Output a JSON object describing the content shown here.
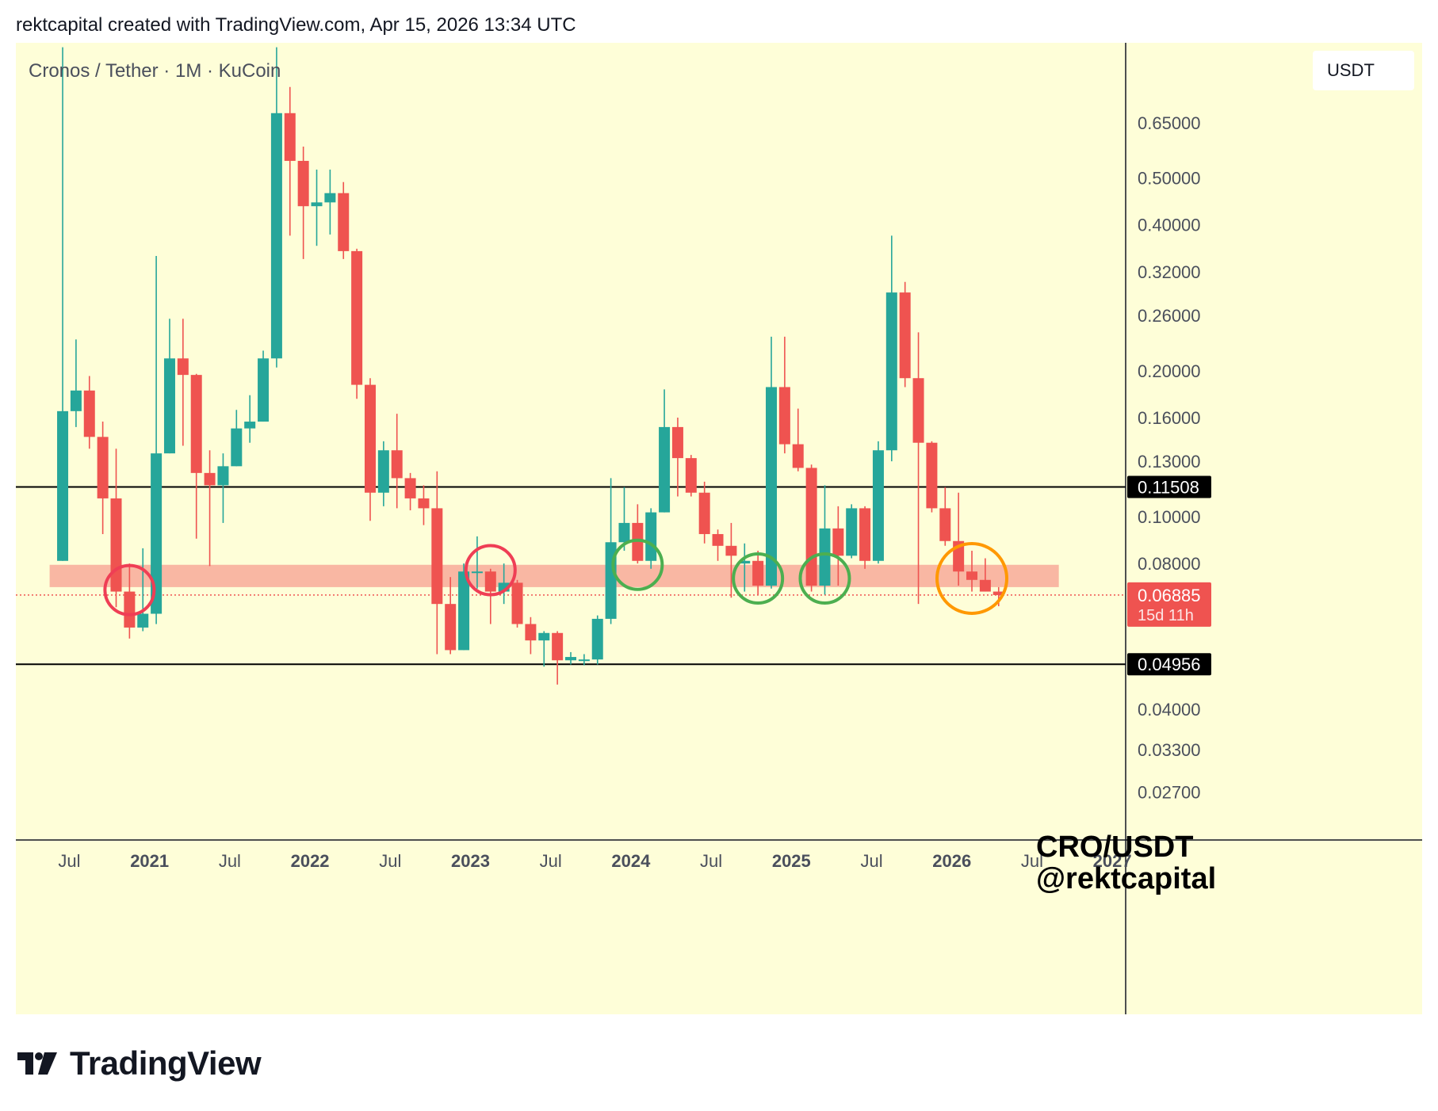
{
  "header": {
    "text": "rektcapital created with TradingView.com, Apr 15, 2026 13:34 UTC"
  },
  "symbol_label": "Cronos / Tether · 1M · KuCoin",
  "currency": "USDT",
  "watermark": {
    "line1": "CRO/USDT",
    "line2": "@rektcapital"
  },
  "footer": {
    "brand": "TradingView"
  },
  "colors": {
    "background": "#fefed8",
    "bull": "#26a69a",
    "bear": "#ef5350",
    "zone": "#f9b7a3",
    "circle_red": "#ef3e55",
    "circle_green": "#4caf50",
    "circle_orange": "#ff9800"
  },
  "chart_data": {
    "type": "candlestick",
    "y_scale": "log",
    "ylim": [
      0.0215,
      0.95
    ],
    "xlim": [
      "2020-03",
      "2027-02"
    ],
    "y_ticks": [
      "0.65000",
      "0.50000",
      "0.40000",
      "0.32000",
      "0.26000",
      "0.20000",
      "0.16000",
      "0.13000",
      "0.10000",
      "0.08000",
      "0.04000",
      "0.03300",
      "0.02700"
    ],
    "x_ticks": [
      {
        "date": "2020-07",
        "label": "Jul",
        "bold": false
      },
      {
        "date": "2021-01",
        "label": "2021",
        "bold": true
      },
      {
        "date": "2021-07",
        "label": "Jul",
        "bold": false
      },
      {
        "date": "2022-01",
        "label": "2022",
        "bold": true
      },
      {
        "date": "2022-07",
        "label": "Jul",
        "bold": false
      },
      {
        "date": "2023-01",
        "label": "2023",
        "bold": true
      },
      {
        "date": "2023-07",
        "label": "Jul",
        "bold": false
      },
      {
        "date": "2024-01",
        "label": "2024",
        "bold": true
      },
      {
        "date": "2024-07",
        "label": "Jul",
        "bold": false
      },
      {
        "date": "2025-01",
        "label": "2025",
        "bold": true
      },
      {
        "date": "2025-07",
        "label": "Jul",
        "bold": false
      },
      {
        "date": "2026-01",
        "label": "2026",
        "bold": true
      },
      {
        "date": "2026-07",
        "label": "Jul",
        "bold": false
      },
      {
        "date": "2027-01",
        "label": "2027",
        "bold": true
      }
    ],
    "horizontal_lines": [
      {
        "value": 0.11508,
        "label": "0.11508"
      },
      {
        "value": 0.04956,
        "label": "0.04956"
      }
    ],
    "current_price": {
      "value": 0.06885,
      "label": "0.06885",
      "countdown": "15d 11h"
    },
    "support_zone": {
      "low": 0.0715,
      "high": 0.0795,
      "from": "2020-06",
      "to": "2026-09"
    },
    "candles": [
      {
        "t": "2020-06",
        "o": 0.081,
        "h": 0.93,
        "l": 0.081,
        "c": 0.165
      },
      {
        "t": "2020-07",
        "o": 0.165,
        "h": 0.232,
        "l": 0.153,
        "c": 0.182
      },
      {
        "t": "2020-08",
        "o": 0.182,
        "h": 0.195,
        "l": 0.138,
        "c": 0.146
      },
      {
        "t": "2020-09",
        "o": 0.146,
        "h": 0.157,
        "l": 0.092,
        "c": 0.109
      },
      {
        "t": "2020-10",
        "o": 0.109,
        "h": 0.138,
        "l": 0.065,
        "c": 0.07
      },
      {
        "t": "2020-11",
        "o": 0.07,
        "h": 0.08,
        "l": 0.056,
        "c": 0.059
      },
      {
        "t": "2020-12",
        "o": 0.059,
        "h": 0.086,
        "l": 0.058,
        "c": 0.063
      },
      {
        "t": "2021-01",
        "o": 0.063,
        "h": 0.345,
        "l": 0.06,
        "c": 0.135
      },
      {
        "t": "2021-02",
        "o": 0.135,
        "h": 0.256,
        "l": 0.135,
        "c": 0.212
      },
      {
        "t": "2021-03",
        "o": 0.212,
        "h": 0.256,
        "l": 0.14,
        "c": 0.196
      },
      {
        "t": "2021-04",
        "o": 0.196,
        "h": 0.197,
        "l": 0.09,
        "c": 0.123
      },
      {
        "t": "2021-05",
        "o": 0.123,
        "h": 0.137,
        "l": 0.079,
        "c": 0.116
      },
      {
        "t": "2021-06",
        "o": 0.116,
        "h": 0.135,
        "l": 0.097,
        "c": 0.127
      },
      {
        "t": "2021-07",
        "o": 0.127,
        "h": 0.166,
        "l": 0.127,
        "c": 0.152
      },
      {
        "t": "2021-08",
        "o": 0.152,
        "h": 0.178,
        "l": 0.142,
        "c": 0.157
      },
      {
        "t": "2021-09",
        "o": 0.157,
        "h": 0.22,
        "l": 0.157,
        "c": 0.212
      },
      {
        "t": "2021-10",
        "o": 0.212,
        "h": 0.93,
        "l": 0.203,
        "c": 0.68
      },
      {
        "t": "2021-11",
        "o": 0.68,
        "h": 0.77,
        "l": 0.38,
        "c": 0.542
      },
      {
        "t": "2021-12",
        "o": 0.542,
        "h": 0.58,
        "l": 0.34,
        "c": 0.437
      },
      {
        "t": "2022-01",
        "o": 0.437,
        "h": 0.52,
        "l": 0.362,
        "c": 0.445
      },
      {
        "t": "2022-02",
        "o": 0.445,
        "h": 0.52,
        "l": 0.382,
        "c": 0.465
      },
      {
        "t": "2022-03",
        "o": 0.465,
        "h": 0.49,
        "l": 0.34,
        "c": 0.353
      },
      {
        "t": "2022-04",
        "o": 0.353,
        "h": 0.357,
        "l": 0.175,
        "c": 0.187
      },
      {
        "t": "2022-05",
        "o": 0.187,
        "h": 0.193,
        "l": 0.098,
        "c": 0.112
      },
      {
        "t": "2022-06",
        "o": 0.112,
        "h": 0.143,
        "l": 0.105,
        "c": 0.137
      },
      {
        "t": "2022-07",
        "o": 0.137,
        "h": 0.163,
        "l": 0.104,
        "c": 0.12
      },
      {
        "t": "2022-08",
        "o": 0.12,
        "h": 0.123,
        "l": 0.103,
        "c": 0.109
      },
      {
        "t": "2022-09",
        "o": 0.109,
        "h": 0.116,
        "l": 0.096,
        "c": 0.104
      },
      {
        "t": "2022-10",
        "o": 0.104,
        "h": 0.124,
        "l": 0.052,
        "c": 0.066
      },
      {
        "t": "2022-11",
        "o": 0.066,
        "h": 0.075,
        "l": 0.052,
        "c": 0.053
      },
      {
        "t": "2022-12",
        "o": 0.053,
        "h": 0.08,
        "l": 0.053,
        "c": 0.077
      },
      {
        "t": "2023-01",
        "o": 0.077,
        "h": 0.091,
        "l": 0.071,
        "c": 0.077
      },
      {
        "t": "2023-02",
        "o": 0.077,
        "h": 0.078,
        "l": 0.06,
        "c": 0.07
      },
      {
        "t": "2023-03",
        "o": 0.07,
        "h": 0.08,
        "l": 0.066,
        "c": 0.073
      },
      {
        "t": "2023-04",
        "o": 0.073,
        "h": 0.074,
        "l": 0.059,
        "c": 0.06
      },
      {
        "t": "2023-05",
        "o": 0.06,
        "h": 0.062,
        "l": 0.052,
        "c": 0.0555
      },
      {
        "t": "2023-06",
        "o": 0.0555,
        "h": 0.058,
        "l": 0.049,
        "c": 0.0575
      },
      {
        "t": "2023-07",
        "o": 0.0575,
        "h": 0.058,
        "l": 0.045,
        "c": 0.0505
      },
      {
        "t": "2023-08",
        "o": 0.0505,
        "h": 0.0525,
        "l": 0.0495,
        "c": 0.0513
      },
      {
        "t": "2023-09",
        "o": 0.0505,
        "h": 0.052,
        "l": 0.0493,
        "c": 0.0507
      },
      {
        "t": "2023-10",
        "o": 0.0507,
        "h": 0.0625,
        "l": 0.0495,
        "c": 0.0615
      },
      {
        "t": "2023-11",
        "o": 0.0615,
        "h": 0.12,
        "l": 0.06,
        "c": 0.0885
      },
      {
        "t": "2023-12",
        "o": 0.0885,
        "h": 0.115,
        "l": 0.085,
        "c": 0.097
      },
      {
        "t": "2024-01",
        "o": 0.097,
        "h": 0.106,
        "l": 0.08,
        "c": 0.081
      },
      {
        "t": "2024-02",
        "o": 0.081,
        "h": 0.104,
        "l": 0.078,
        "c": 0.102
      },
      {
        "t": "2024-03",
        "o": 0.102,
        "h": 0.183,
        "l": 0.102,
        "c": 0.153
      },
      {
        "t": "2024-04",
        "o": 0.153,
        "h": 0.16,
        "l": 0.11,
        "c": 0.132
      },
      {
        "t": "2024-05",
        "o": 0.132,
        "h": 0.134,
        "l": 0.11,
        "c": 0.112
      },
      {
        "t": "2024-06",
        "o": 0.112,
        "h": 0.118,
        "l": 0.088,
        "c": 0.092
      },
      {
        "t": "2024-07",
        "o": 0.092,
        "h": 0.094,
        "l": 0.081,
        "c": 0.087
      },
      {
        "t": "2024-08",
        "o": 0.087,
        "h": 0.097,
        "l": 0.068,
        "c": 0.083
      },
      {
        "t": "2024-09",
        "o": 0.08,
        "h": 0.088,
        "l": 0.07,
        "c": 0.081
      },
      {
        "t": "2024-10",
        "o": 0.081,
        "h": 0.085,
        "l": 0.069,
        "c": 0.072
      },
      {
        "t": "2024-11",
        "o": 0.072,
        "h": 0.235,
        "l": 0.071,
        "c": 0.185
      },
      {
        "t": "2024-12",
        "o": 0.185,
        "h": 0.235,
        "l": 0.135,
        "c": 0.141
      },
      {
        "t": "2025-01",
        "o": 0.141,
        "h": 0.167,
        "l": 0.124,
        "c": 0.126
      },
      {
        "t": "2025-02",
        "o": 0.126,
        "h": 0.128,
        "l": 0.07,
        "c": 0.072
      },
      {
        "t": "2025-03",
        "o": 0.072,
        "h": 0.116,
        "l": 0.069,
        "c": 0.0945
      },
      {
        "t": "2025-04",
        "o": 0.0945,
        "h": 0.105,
        "l": 0.072,
        "c": 0.083
      },
      {
        "t": "2025-05",
        "o": 0.083,
        "h": 0.106,
        "l": 0.082,
        "c": 0.104
      },
      {
        "t": "2025-06",
        "o": 0.104,
        "h": 0.105,
        "l": 0.078,
        "c": 0.081
      },
      {
        "t": "2025-07",
        "o": 0.081,
        "h": 0.143,
        "l": 0.08,
        "c": 0.137
      },
      {
        "t": "2025-08",
        "o": 0.137,
        "h": 0.38,
        "l": 0.13,
        "c": 0.29
      },
      {
        "t": "2025-09",
        "o": 0.29,
        "h": 0.305,
        "l": 0.185,
        "c": 0.193
      },
      {
        "t": "2025-10",
        "o": 0.193,
        "h": 0.24,
        "l": 0.066,
        "c": 0.142
      },
      {
        "t": "2025-11",
        "o": 0.142,
        "h": 0.143,
        "l": 0.102,
        "c": 0.104
      },
      {
        "t": "2025-12",
        "o": 0.104,
        "h": 0.115,
        "l": 0.087,
        "c": 0.089
      },
      {
        "t": "2026-01",
        "o": 0.089,
        "h": 0.112,
        "l": 0.072,
        "c": 0.077
      },
      {
        "t": "2026-02",
        "o": 0.077,
        "h": 0.085,
        "l": 0.07,
        "c": 0.074
      },
      {
        "t": "2026-03",
        "o": 0.074,
        "h": 0.082,
        "l": 0.07,
        "c": 0.07
      },
      {
        "t": "2026-04",
        "o": 0.07,
        "h": 0.0715,
        "l": 0.0653,
        "c": 0.06885
      }
    ],
    "annotations": [
      {
        "type": "circle",
        "color": "red",
        "t": "2020-11",
        "value": 0.0705
      },
      {
        "type": "circle",
        "color": "red",
        "t": "2023-02",
        "value": 0.0775
      },
      {
        "type": "circle",
        "color": "green",
        "t": "2024-01",
        "value": 0.0795
      },
      {
        "type": "circle",
        "color": "green",
        "t": "2024-10",
        "value": 0.0745
      },
      {
        "type": "circle",
        "color": "green",
        "t": "2025-03",
        "value": 0.0745
      },
      {
        "type": "circle",
        "color": "orange",
        "t": "2026-02",
        "value": 0.0745
      }
    ]
  }
}
